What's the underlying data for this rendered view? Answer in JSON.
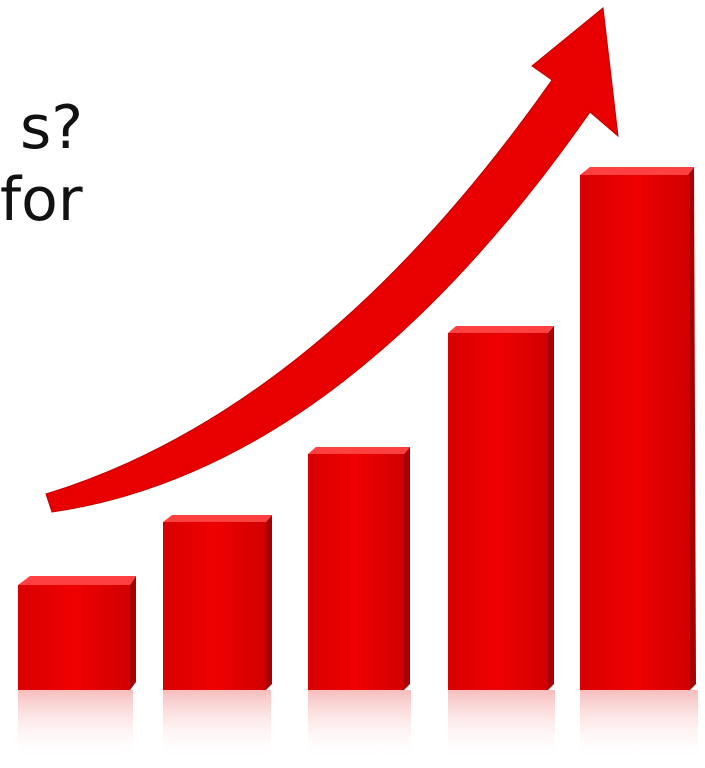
{
  "text_lines": [
    "s?",
    "for"
  ]
}
